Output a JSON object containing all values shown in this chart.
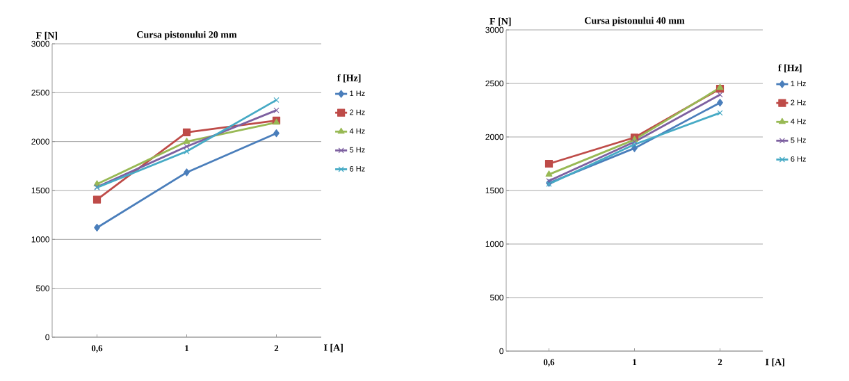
{
  "chart_data": [
    {
      "type": "line",
      "title": "Cursa pistonului  20 mm",
      "xlabel": "I [A]",
      "ylabel": "F [N]",
      "legend_title": "f [Hz]",
      "categories": [
        "0,6",
        "1",
        "2"
      ],
      "ylim": [
        0,
        3000
      ],
      "yticks": [
        0,
        500,
        1000,
        1500,
        2000,
        2500,
        3000
      ],
      "grid": "y",
      "legend": "right",
      "series": [
        {
          "name": "1 Hz",
          "color": "#4a7ebb",
          "marker": "diamond",
          "values": [
            1120,
            1685,
            2085
          ]
        },
        {
          "name": "2 Hz",
          "color": "#be4b48",
          "marker": "square",
          "values": [
            1407,
            2095,
            2215
          ]
        },
        {
          "name": "4 Hz",
          "color": "#98b954",
          "marker": "triangle",
          "values": [
            1565,
            2000,
            2195
          ]
        },
        {
          "name": "5 Hz",
          "color": "#7d60a0",
          "marker": "cross",
          "values": [
            1535,
            1950,
            2320
          ]
        },
        {
          "name": "6 Hz",
          "color": "#46aac5",
          "marker": "cross",
          "values": [
            1530,
            1900,
            2425
          ]
        }
      ]
    },
    {
      "type": "line",
      "title": "Cursa pistonului  40 mm",
      "xlabel": "I [A]",
      "ylabel": "F [N]",
      "legend_title": "f [Hz]",
      "categories": [
        "0,6",
        "1",
        "2"
      ],
      "ylim": [
        0,
        3000
      ],
      "yticks": [
        0,
        500,
        1000,
        1500,
        2000,
        2500,
        3000
      ],
      "grid": "y",
      "legend": "right",
      "series": [
        {
          "name": "1 Hz",
          "color": "#4a7ebb",
          "marker": "diamond",
          "values": [
            1570,
            1895,
            2320
          ]
        },
        {
          "name": "2 Hz",
          "color": "#be4b48",
          "marker": "square",
          "values": [
            1750,
            1995,
            2450
          ]
        },
        {
          "name": "4 Hz",
          "color": "#98b954",
          "marker": "triangle",
          "values": [
            1650,
            1975,
            2460
          ]
        },
        {
          "name": "5 Hz",
          "color": "#7d60a0",
          "marker": "cross",
          "values": [
            1590,
            1955,
            2395
          ]
        },
        {
          "name": "6 Hz",
          "color": "#46aac5",
          "marker": "cross",
          "values": [
            1560,
            1930,
            2225
          ]
        }
      ]
    }
  ]
}
